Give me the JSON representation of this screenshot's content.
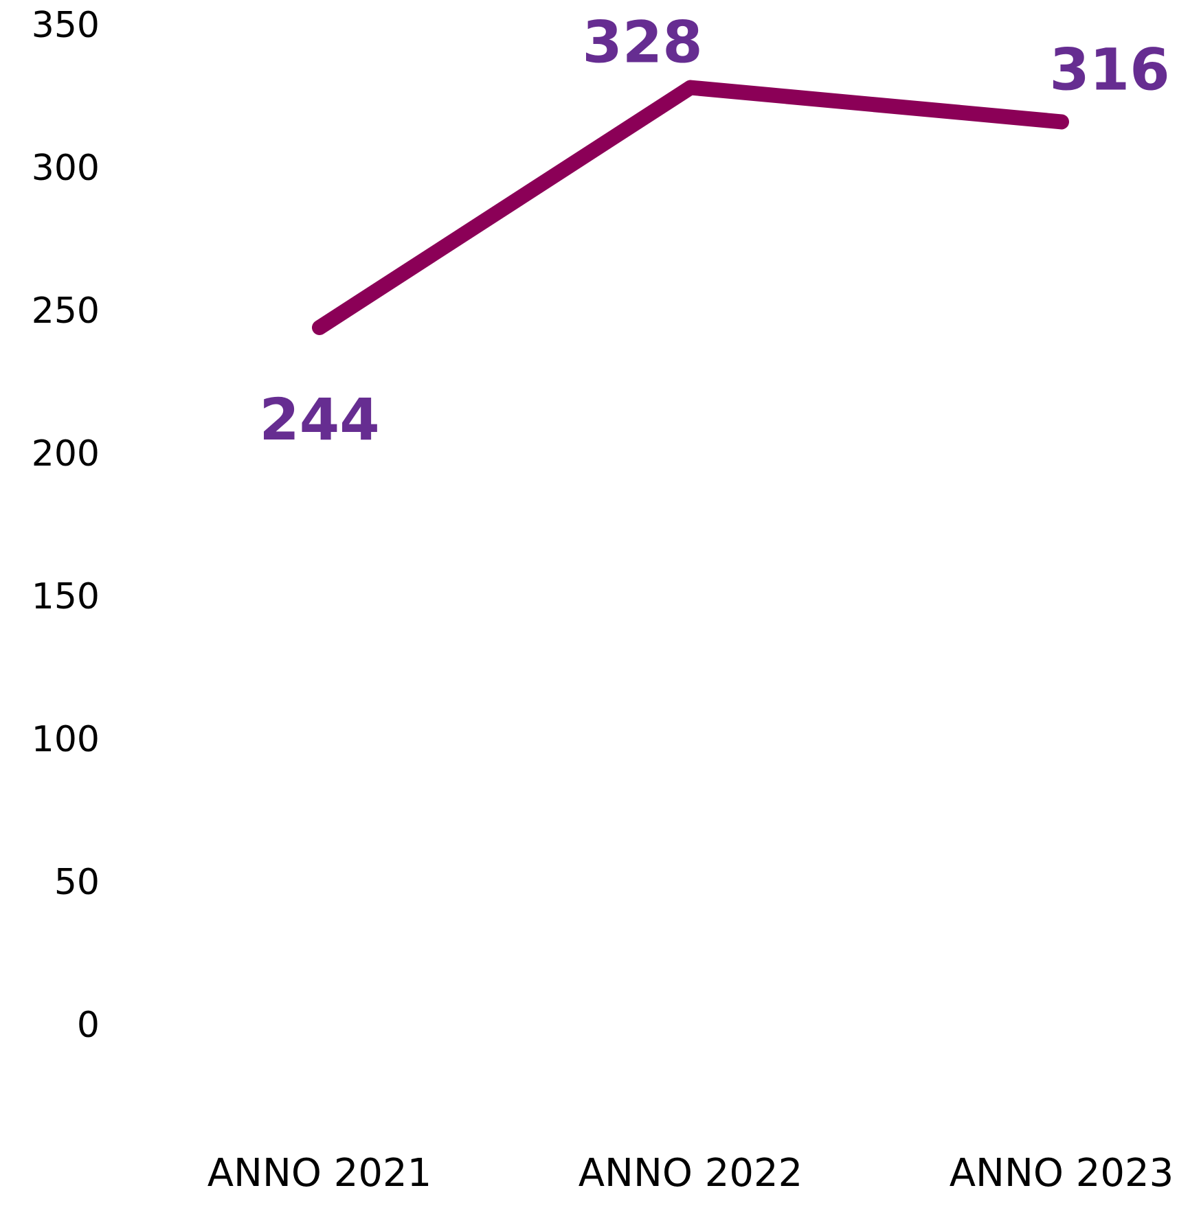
{
  "chart_data": {
    "type": "line",
    "categories": [
      "ANNO 2021",
      "ANNO 2022",
      "ANNO 2023"
    ],
    "values": [
      244,
      328,
      316
    ],
    "color": "#8b0057",
    "label_color": "#662d91",
    "ylim": [
      0,
      350
    ],
    "yticks": [
      0,
      50,
      100,
      150,
      200,
      250,
      300,
      350
    ],
    "grid": false
  }
}
